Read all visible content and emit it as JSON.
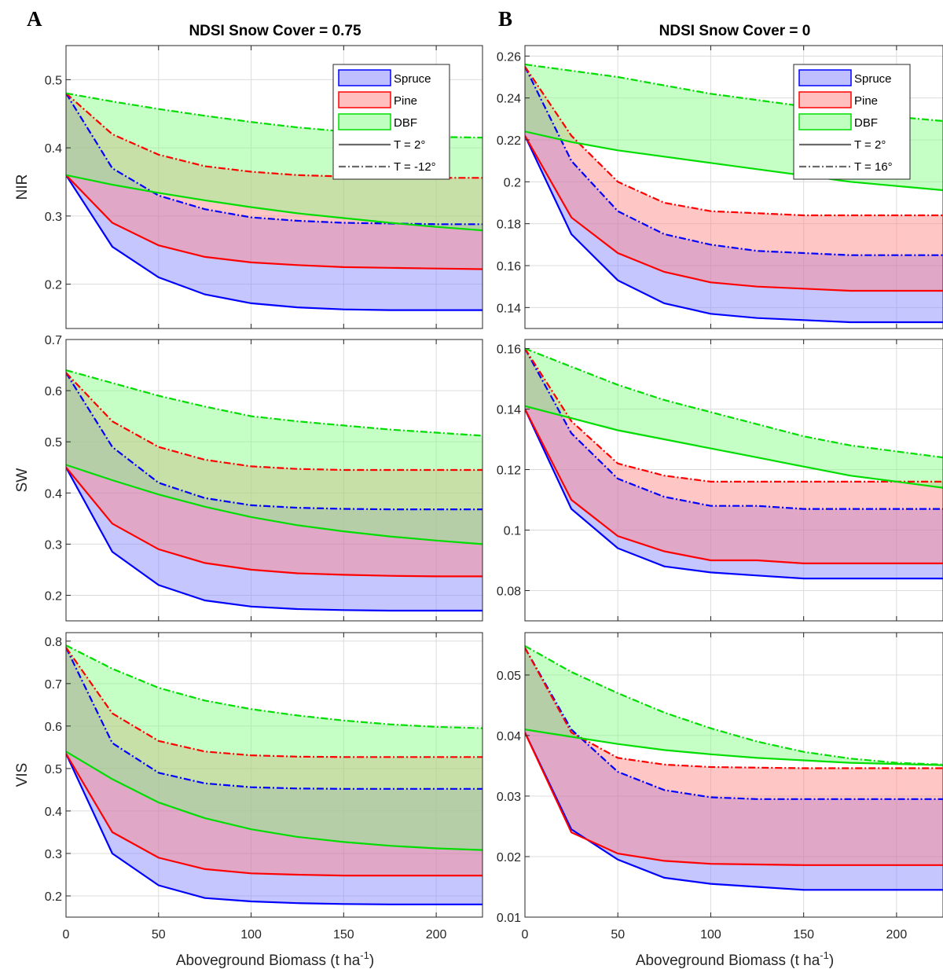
{
  "figure": {
    "panel_letters": [
      "A",
      "B"
    ],
    "column_titles": [
      "NDSI Snow Cover = 0.75",
      "NDSI Snow Cover = 0"
    ],
    "x_label_main": "Aboveground Biomass (t ha",
    "x_label_sup": "-1",
    "x_label_end": ")",
    "row_labels": [
      "NIR",
      "SW",
      "VIS"
    ]
  },
  "colors": {
    "spruce": "#0000ff",
    "spruce_fill": "#8080ff",
    "pine": "#ff0000",
    "pine_fill": "#ff8080",
    "dbf": "#00dd00",
    "dbf_fill": "#80ff80"
  },
  "chart_data": [
    {
      "id": "A-NIR",
      "type": "area",
      "column": "A",
      "ylabel": "NIR",
      "xlim": [
        0,
        225
      ],
      "ylim": [
        0.135,
        0.55
      ],
      "xticks": [
        0,
        50,
        100,
        150,
        200
      ],
      "yticks": [
        0.2,
        0.3,
        0.4,
        0.5
      ],
      "grid": true,
      "legend": "top-right",
      "legend_entries": [
        "Spruce",
        "Pine",
        "DBF",
        "T = 2°",
        "T = -12°"
      ],
      "x": [
        0,
        25,
        50,
        75,
        100,
        125,
        150,
        175,
        200,
        225
      ],
      "series": [
        {
          "name": "Spruce",
          "lower": [
            0.36,
            0.255,
            0.21,
            0.185,
            0.172,
            0.166,
            0.163,
            0.162,
            0.162,
            0.162
          ],
          "upper": [
            0.48,
            0.37,
            0.33,
            0.31,
            0.298,
            0.293,
            0.29,
            0.289,
            0.288,
            0.288
          ]
        },
        {
          "name": "Pine",
          "lower": [
            0.36,
            0.29,
            0.257,
            0.24,
            0.232,
            0.228,
            0.225,
            0.224,
            0.223,
            0.222
          ],
          "upper": [
            0.48,
            0.42,
            0.39,
            0.373,
            0.365,
            0.36,
            0.358,
            0.357,
            0.356,
            0.356
          ]
        },
        {
          "name": "DBF",
          "lower": [
            0.36,
            0.346,
            0.334,
            0.323,
            0.313,
            0.304,
            0.297,
            0.29,
            0.284,
            0.279
          ],
          "upper": [
            0.48,
            0.468,
            0.457,
            0.447,
            0.438,
            0.43,
            0.424,
            0.419,
            0.416,
            0.415
          ]
        }
      ]
    },
    {
      "id": "B-NIR",
      "type": "area",
      "column": "B",
      "ylabel": "",
      "xlim": [
        0,
        225
      ],
      "ylim": [
        0.13,
        0.265
      ],
      "xticks": [
        0,
        50,
        100,
        150,
        200
      ],
      "yticks": [
        0.14,
        0.16,
        0.18,
        0.2,
        0.22,
        0.24,
        0.26
      ],
      "grid": true,
      "legend": "top-right",
      "legend_entries": [
        "Spruce",
        "Pine",
        "DBF",
        "T = 2°",
        "T = 16°"
      ],
      "x": [
        0,
        25,
        50,
        75,
        100,
        125,
        150,
        175,
        200,
        225
      ],
      "series": [
        {
          "name": "Spruce",
          "lower": [
            0.222,
            0.175,
            0.153,
            0.142,
            0.137,
            0.135,
            0.134,
            0.133,
            0.133,
            0.133
          ],
          "upper": [
            0.255,
            0.21,
            0.186,
            0.175,
            0.17,
            0.167,
            0.166,
            0.165,
            0.165,
            0.165
          ]
        },
        {
          "name": "Pine",
          "lower": [
            0.222,
            0.183,
            0.166,
            0.157,
            0.152,
            0.15,
            0.149,
            0.148,
            0.148,
            0.148
          ],
          "upper": [
            0.255,
            0.222,
            0.2,
            0.19,
            0.186,
            0.185,
            0.184,
            0.184,
            0.184,
            0.184
          ]
        },
        {
          "name": "DBF",
          "lower": [
            0.224,
            0.219,
            0.215,
            0.212,
            0.209,
            0.206,
            0.203,
            0.2,
            0.198,
            0.196
          ],
          "upper": [
            0.256,
            0.253,
            0.25,
            0.246,
            0.242,
            0.239,
            0.236,
            0.233,
            0.231,
            0.229
          ]
        }
      ]
    },
    {
      "id": "A-SW",
      "type": "area",
      "column": "A",
      "ylabel": "SW",
      "xlim": [
        0,
        225
      ],
      "ylim": [
        0.15,
        0.7
      ],
      "xticks": [
        0,
        50,
        100,
        150,
        200
      ],
      "yticks": [
        0.2,
        0.3,
        0.4,
        0.5,
        0.6,
        0.7
      ],
      "grid": true,
      "x": [
        0,
        25,
        50,
        75,
        100,
        125,
        150,
        175,
        200,
        225
      ],
      "series": [
        {
          "name": "Spruce",
          "lower": [
            0.45,
            0.285,
            0.22,
            0.19,
            0.178,
            0.173,
            0.171,
            0.17,
            0.17,
            0.17
          ],
          "upper": [
            0.635,
            0.49,
            0.42,
            0.39,
            0.376,
            0.371,
            0.369,
            0.368,
            0.368,
            0.368
          ]
        },
        {
          "name": "Pine",
          "lower": [
            0.45,
            0.34,
            0.29,
            0.263,
            0.25,
            0.243,
            0.24,
            0.238,
            0.237,
            0.237
          ],
          "upper": [
            0.635,
            0.54,
            0.49,
            0.465,
            0.452,
            0.447,
            0.445,
            0.445,
            0.445,
            0.445
          ]
        },
        {
          "name": "DBF",
          "lower": [
            0.455,
            0.425,
            0.397,
            0.373,
            0.353,
            0.337,
            0.325,
            0.315,
            0.307,
            0.3
          ],
          "upper": [
            0.64,
            0.615,
            0.59,
            0.569,
            0.55,
            0.54,
            0.532,
            0.524,
            0.518,
            0.512
          ]
        }
      ]
    },
    {
      "id": "B-SW",
      "type": "area",
      "column": "B",
      "ylabel": "",
      "xlim": [
        0,
        225
      ],
      "ylim": [
        0.07,
        0.163
      ],
      "xticks": [
        0,
        50,
        100,
        150,
        200
      ],
      "yticks": [
        0.08,
        0.1,
        0.12,
        0.14,
        0.16
      ],
      "grid": true,
      "x": [
        0,
        25,
        50,
        75,
        100,
        125,
        150,
        175,
        200,
        225
      ],
      "series": [
        {
          "name": "Spruce",
          "lower": [
            0.14,
            0.107,
            0.094,
            0.088,
            0.086,
            0.085,
            0.084,
            0.084,
            0.084,
            0.084
          ],
          "upper": [
            0.16,
            0.132,
            0.117,
            0.111,
            0.108,
            0.108,
            0.107,
            0.107,
            0.107,
            0.107
          ]
        },
        {
          "name": "Pine",
          "lower": [
            0.14,
            0.11,
            0.098,
            0.093,
            0.09,
            0.09,
            0.089,
            0.089,
            0.089,
            0.089
          ],
          "upper": [
            0.16,
            0.136,
            0.122,
            0.118,
            0.116,
            0.116,
            0.116,
            0.116,
            0.116,
            0.116
          ]
        },
        {
          "name": "DBF",
          "lower": [
            0.141,
            0.137,
            0.133,
            0.13,
            0.127,
            0.124,
            0.121,
            0.118,
            0.116,
            0.114
          ],
          "upper": [
            0.16,
            0.154,
            0.148,
            0.143,
            0.139,
            0.135,
            0.131,
            0.128,
            0.126,
            0.124
          ]
        }
      ]
    },
    {
      "id": "A-VIS",
      "type": "area",
      "column": "A",
      "ylabel": "VIS",
      "xlim": [
        0,
        225
      ],
      "ylim": [
        0.15,
        0.82
      ],
      "xticks": [
        0,
        50,
        100,
        150,
        200
      ],
      "yticks": [
        0.2,
        0.3,
        0.4,
        0.5,
        0.6,
        0.7,
        0.8
      ],
      "grid": true,
      "x": [
        0,
        25,
        50,
        75,
        100,
        125,
        150,
        175,
        200,
        225
      ],
      "series": [
        {
          "name": "Spruce",
          "lower": [
            0.535,
            0.3,
            0.225,
            0.195,
            0.187,
            0.183,
            0.181,
            0.18,
            0.18,
            0.18
          ],
          "upper": [
            0.785,
            0.56,
            0.49,
            0.465,
            0.456,
            0.453,
            0.452,
            0.452,
            0.452,
            0.452
          ]
        },
        {
          "name": "Pine",
          "lower": [
            0.535,
            0.35,
            0.29,
            0.263,
            0.253,
            0.25,
            0.248,
            0.248,
            0.248,
            0.248
          ],
          "upper": [
            0.785,
            0.63,
            0.565,
            0.54,
            0.531,
            0.528,
            0.527,
            0.527,
            0.527,
            0.527
          ]
        },
        {
          "name": "DBF",
          "lower": [
            0.54,
            0.475,
            0.42,
            0.383,
            0.357,
            0.339,
            0.327,
            0.318,
            0.312,
            0.308
          ],
          "upper": [
            0.79,
            0.735,
            0.69,
            0.66,
            0.64,
            0.625,
            0.613,
            0.604,
            0.598,
            0.595
          ]
        }
      ]
    },
    {
      "id": "B-VIS",
      "type": "area",
      "column": "B",
      "ylabel": "",
      "xlim": [
        0,
        225
      ],
      "ylim": [
        0.01,
        0.057
      ],
      "xticks": [
        0,
        50,
        100,
        150,
        200
      ],
      "yticks": [
        0.01,
        0.02,
        0.03,
        0.04,
        0.05
      ],
      "grid": true,
      "x": [
        0,
        25,
        50,
        75,
        100,
        125,
        150,
        175,
        200,
        225
      ],
      "series": [
        {
          "name": "Spruce",
          "lower": [
            0.0405,
            0.0245,
            0.0195,
            0.0165,
            0.0155,
            0.015,
            0.0145,
            0.0145,
            0.0145,
            0.0145
          ],
          "upper": [
            0.0545,
            0.041,
            0.034,
            0.031,
            0.0298,
            0.0295,
            0.0295,
            0.0295,
            0.0295,
            0.0295
          ]
        },
        {
          "name": "Pine",
          "lower": [
            0.0405,
            0.024,
            0.0205,
            0.0193,
            0.0188,
            0.0187,
            0.0186,
            0.0186,
            0.0186,
            0.0186
          ],
          "upper": [
            0.0545,
            0.0405,
            0.0363,
            0.0352,
            0.0348,
            0.0347,
            0.0346,
            0.0346,
            0.0346,
            0.0346
          ]
        },
        {
          "name": "DBF",
          "lower": [
            0.041,
            0.0398,
            0.0386,
            0.0376,
            0.0369,
            0.0363,
            0.0359,
            0.0355,
            0.0353,
            0.0351
          ],
          "upper": [
            0.0548,
            0.0505,
            0.047,
            0.0438,
            0.0412,
            0.039,
            0.0373,
            0.0362,
            0.0355,
            0.0352
          ]
        }
      ]
    }
  ]
}
